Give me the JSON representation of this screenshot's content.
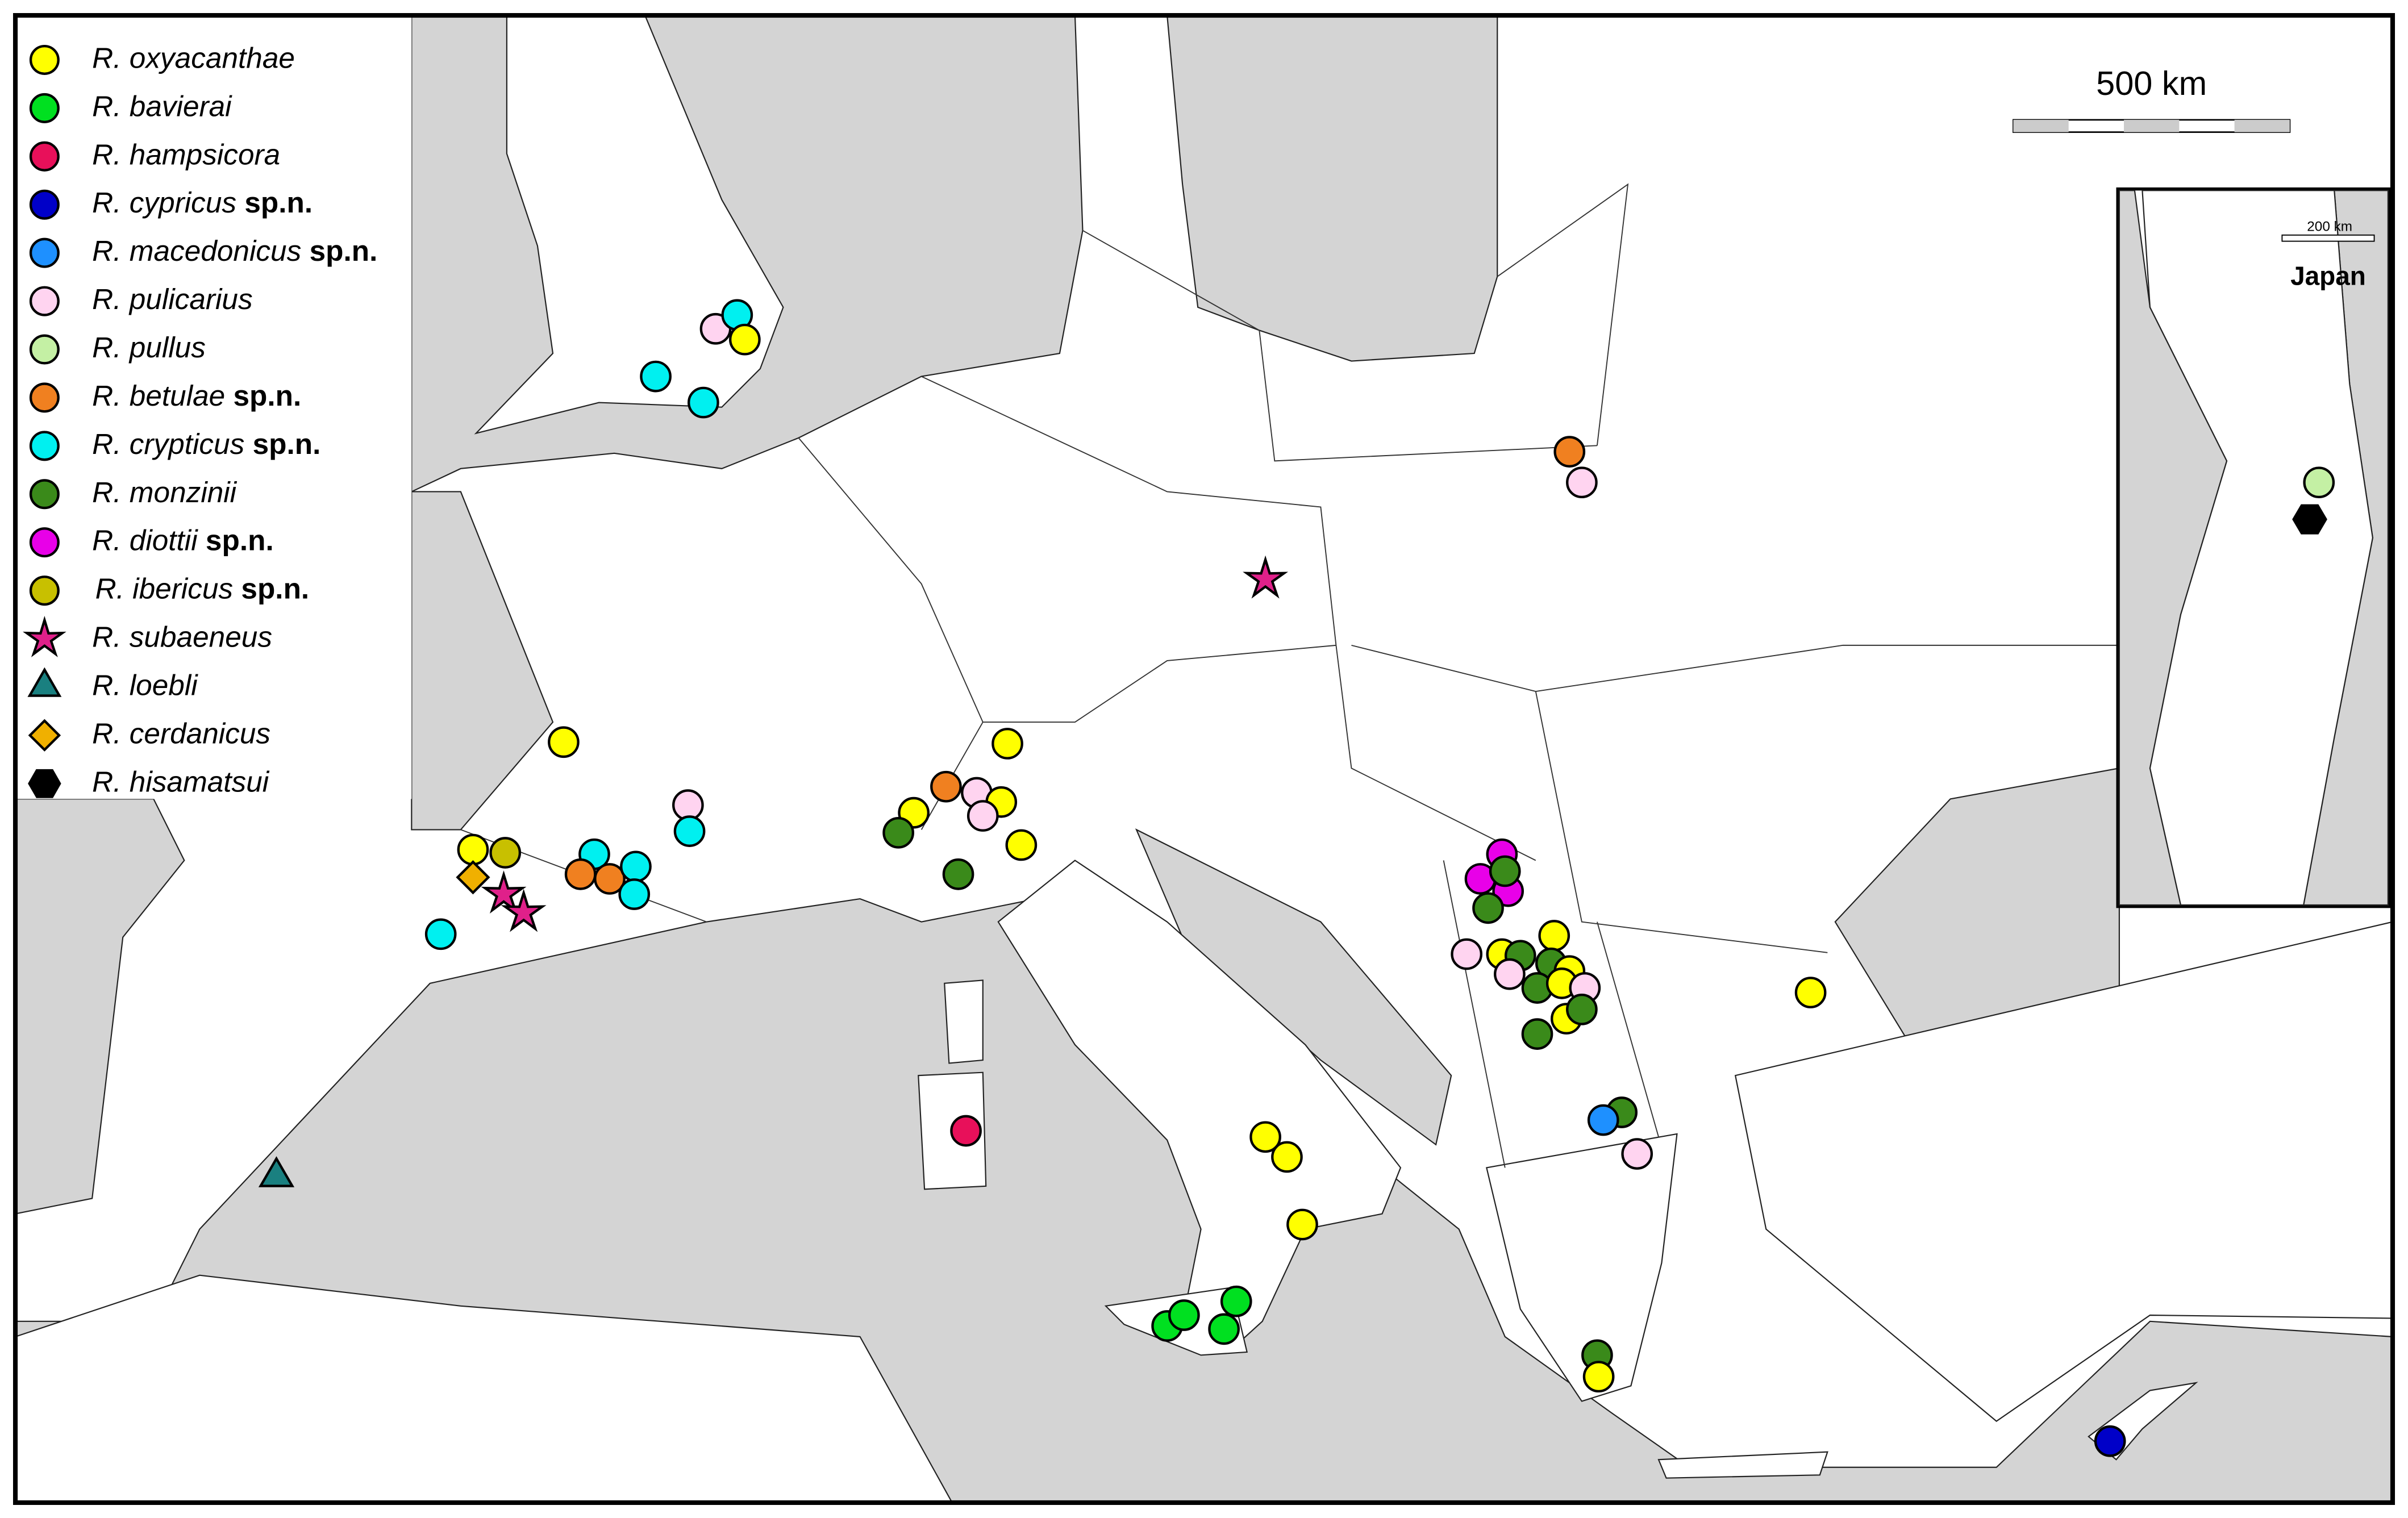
{
  "legend": [
    {
      "name": "R. oxyacanthae",
      "color": "#ffff00",
      "shape": "circle"
    },
    {
      "name": "R. bavierai",
      "color": "#00e020",
      "shape": "circle"
    },
    {
      "name": "R. hampsicora",
      "color": "#e8105a",
      "shape": "circle"
    },
    {
      "name": "R. cypricus",
      "suffix": "sp.n.",
      "color": "#0000c8",
      "shape": "circle"
    },
    {
      "name": "R. macedonicus",
      "suffix": "sp.n.",
      "color": "#1e90ff",
      "shape": "circle"
    },
    {
      "name": "R. pulicarius",
      "color": "#ffd4f0",
      "shape": "circle"
    },
    {
      "name": "R. pullus",
      "color": "#c4f0a4",
      "shape": "circle"
    },
    {
      "name": "R. betulae",
      "suffix": "sp.n.",
      "color": "#f08020",
      "shape": "circle"
    },
    {
      "name": "R. crypticus",
      "suffix": "sp.n.",
      "color": "#00f0f0",
      "shape": "circle"
    },
    {
      "name": "R. monzinii",
      "color": "#3a8a1a",
      "shape": "circle"
    },
    {
      "name": "R. diottii",
      "suffix": "sp.n.",
      "color": "#e800e8",
      "shape": "circle"
    },
    {
      "name": "R. ibericus",
      "suffix": "sp.n.",
      "color": "#c8c000",
      "shape": "circle"
    },
    {
      "name": "R. subaeneus",
      "color": "#e0208a",
      "shape": "star"
    },
    {
      "name": "R. loebli",
      "color": "#1a8080",
      "shape": "triangle"
    },
    {
      "name": "R. cerdanicus",
      "color": "#f0b000",
      "shape": "diamond"
    },
    {
      "name": "R. hisamatsui",
      "color": "#000000",
      "shape": "hexagon"
    }
  ],
  "scale_bar": "500 km",
  "inset": {
    "scale_bar": "200 km",
    "label": "Japan"
  }
}
